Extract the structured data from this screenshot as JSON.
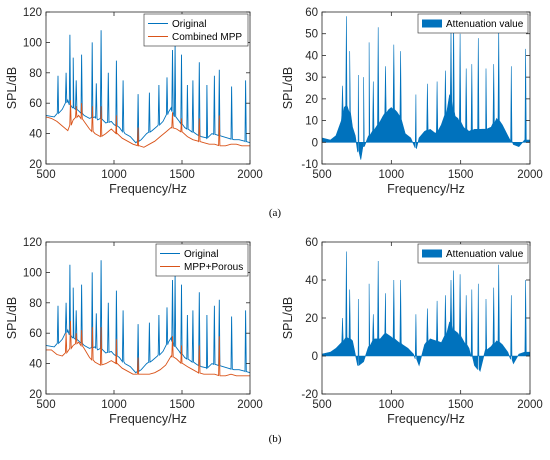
{
  "colors": {
    "original": "#0072BD",
    "treated": "#D95319",
    "attenuation": "#0072BD",
    "axis": "#262626",
    "frame": "#000000"
  },
  "captions": {
    "a": "(a)",
    "b": "(b)"
  },
  "chart_data": [
    {
      "id": "a-spl",
      "type": "line",
      "panel": "(a) left",
      "title": "",
      "xlabel": "Frequency/Hz",
      "ylabel": "SPL/dB",
      "xlim": [
        500,
        2000
      ],
      "ylim": [
        20,
        120
      ],
      "xticks": [
        500,
        1000,
        1500,
        2000
      ],
      "yticks": [
        20,
        40,
        60,
        80,
        100,
        120
      ],
      "legend_position": "top-right",
      "grid": false,
      "series": [
        {
          "name": "Original",
          "color": "#0072BD",
          "x": [
            500,
            560,
            620,
            660,
            680,
            700,
            740,
            780,
            820,
            860,
            880,
            900,
            940,
            980,
            1000,
            1040,
            1080,
            1120,
            1160,
            1200,
            1240,
            1280,
            1320,
            1360,
            1400,
            1420,
            1440,
            1480,
            1520,
            1560,
            1600,
            1640,
            1680,
            1720,
            1760,
            1800,
            1840,
            1880,
            1920,
            1960,
            2000
          ],
          "y": [
            52,
            51,
            56,
            62,
            58,
            57,
            55,
            52,
            50,
            51,
            49,
            50,
            47,
            48,
            46,
            44,
            40,
            38,
            34,
            36,
            40,
            42,
            45,
            48,
            54,
            57,
            52,
            48,
            44,
            42,
            40,
            38,
            37,
            40,
            39,
            38,
            37,
            36,
            36,
            35,
            34
          ],
          "peaks": [
            [
              588,
              78
            ],
            [
              648,
              80
            ],
            [
              676,
              105
            ],
            [
              700,
              90
            ],
            [
              722,
              75
            ],
            [
              762,
              92
            ],
            [
              840,
              100
            ],
            [
              870,
              73
            ],
            [
              905,
              108
            ],
            [
              958,
              80
            ],
            [
              1018,
              88
            ],
            [
              1067,
              75
            ],
            [
              1177,
              66
            ],
            [
              1260,
              67
            ],
            [
              1330,
              72
            ],
            [
              1390,
              77
            ],
            [
              1430,
              95
            ],
            [
              1449,
              98
            ],
            [
              1496,
              92
            ],
            [
              1540,
              72
            ],
            [
              1580,
              75
            ],
            [
              1627,
              87
            ],
            [
              1683,
              72
            ],
            [
              1738,
              78
            ],
            [
              1774,
              82
            ],
            [
              1865,
              71
            ],
            [
              1968,
              75
            ]
          ]
        },
        {
          "name": "Combined MPP",
          "color": "#D95319",
          "x": [
            500,
            540,
            580,
            620,
            660,
            700,
            740,
            780,
            820,
            860,
            900,
            940,
            980,
            1020,
            1060,
            1100,
            1140,
            1180,
            1220,
            1260,
            1300,
            1340,
            1380,
            1420,
            1460,
            1500,
            1540,
            1580,
            1620,
            1660,
            1700,
            1740,
            1780,
            1820,
            1860,
            1900,
            1940,
            1980,
            2000
          ],
          "y": [
            51,
            50,
            48,
            45,
            42,
            49,
            52,
            48,
            43,
            40,
            38,
            40,
            43,
            40,
            37,
            35,
            33,
            32,
            31,
            33,
            35,
            38,
            41,
            44,
            43,
            41,
            38,
            36,
            35,
            34,
            33,
            33,
            32,
            32,
            33,
            33,
            32,
            32,
            32
          ],
          "peaks": [
            [
              680,
              62
            ],
            [
              722,
              58
            ],
            [
              762,
              60
            ],
            [
              841,
              58
            ],
            [
              905,
              58
            ],
            [
              1018,
              52
            ],
            [
              1177,
              44
            ],
            [
              1430,
              54
            ],
            [
              1496,
              50
            ],
            [
              1627,
              50
            ],
            [
              1774,
              52
            ]
          ]
        }
      ]
    },
    {
      "id": "a-att",
      "type": "area",
      "panel": "(a) right",
      "title": "",
      "xlabel": "Frequency/Hz",
      "ylabel": "SPL/dB",
      "xlim": [
        500,
        2000
      ],
      "ylim": [
        -10,
        60
      ],
      "xticks": [
        500,
        1000,
        1500,
        2000
      ],
      "yticks": [
        -10,
        0,
        10,
        20,
        30,
        40,
        50,
        60
      ],
      "legend_position": "top-right",
      "grid": false,
      "series": [
        {
          "name": "Attenuation value",
          "color": "#0072BD",
          "x": [
            500,
            560,
            600,
            640,
            660,
            680,
            700,
            720,
            740,
            760,
            780,
            800,
            840,
            880,
            900,
            940,
            980,
            1000,
            1040,
            1060,
            1100,
            1140,
            1180,
            1200,
            1240,
            1280,
            1320,
            1360,
            1400,
            1420,
            1440,
            1460,
            1480,
            1520,
            1560,
            1600,
            1640,
            1680,
            1720,
            1760,
            1800,
            1840,
            1880,
            1920,
            1960,
            2000
          ],
          "y": [
            2,
            1,
            3,
            10,
            16,
            17,
            14,
            7,
            3,
            -4,
            -8,
            -2,
            3,
            6,
            8,
            12,
            15,
            16,
            14,
            12,
            4,
            2,
            -3,
            2,
            5,
            6,
            4,
            8,
            14,
            22,
            16,
            12,
            11,
            7,
            5,
            6,
            6,
            6,
            7,
            11,
            8,
            3,
            -1,
            -2,
            1,
            1
          ],
          "peaks": [
            [
              648,
              26
            ],
            [
              676,
              58
            ],
            [
              700,
              42
            ],
            [
              762,
              31
            ],
            [
              800,
              30
            ],
            [
              840,
              46
            ],
            [
              870,
              28
            ],
            [
              905,
              53
            ],
            [
              958,
              35
            ],
            [
              1018,
              45
            ],
            [
              1067,
              42
            ],
            [
              1177,
              22
            ],
            [
              1260,
              27
            ],
            [
              1330,
              28
            ],
            [
              1390,
              33
            ],
            [
              1430,
              52
            ],
            [
              1449,
              58
            ],
            [
              1496,
              50
            ],
            [
              1540,
              34
            ],
            [
              1580,
              36
            ],
            [
              1627,
              48
            ],
            [
              1683,
              34
            ],
            [
              1738,
              36
            ],
            [
              1774,
              53
            ],
            [
              1865,
              35
            ],
            [
              1968,
              43
            ]
          ]
        }
      ]
    },
    {
      "id": "b-spl",
      "type": "line",
      "panel": "(b) left",
      "title": "",
      "xlabel": "Frequency/Hz",
      "ylabel": "SPL/dB",
      "xlim": [
        500,
        2000
      ],
      "ylim": [
        20,
        120
      ],
      "xticks": [
        500,
        1000,
        1500,
        2000
      ],
      "yticks": [
        20,
        40,
        60,
        80,
        100,
        120
      ],
      "legend_position": "top-right",
      "grid": false,
      "series": [
        {
          "name": "Original",
          "color": "#0072BD",
          "x": [
            500,
            560,
            620,
            660,
            680,
            700,
            740,
            780,
            820,
            860,
            880,
            900,
            940,
            980,
            1000,
            1040,
            1080,
            1120,
            1160,
            1200,
            1240,
            1280,
            1320,
            1360,
            1400,
            1420,
            1440,
            1480,
            1520,
            1560,
            1600,
            1640,
            1680,
            1720,
            1760,
            1800,
            1840,
            1880,
            1920,
            1960,
            2000
          ],
          "y": [
            52,
            51,
            56,
            62,
            58,
            57,
            55,
            52,
            50,
            51,
            49,
            50,
            47,
            48,
            46,
            44,
            40,
            38,
            34,
            36,
            40,
            42,
            45,
            48,
            54,
            57,
            52,
            48,
            44,
            42,
            40,
            38,
            37,
            40,
            39,
            38,
            37,
            36,
            36,
            35,
            34
          ],
          "peaks": [
            [
              588,
              78
            ],
            [
              648,
              80
            ],
            [
              676,
              105
            ],
            [
              700,
              90
            ],
            [
              722,
              75
            ],
            [
              762,
              92
            ],
            [
              840,
              100
            ],
            [
              870,
              73
            ],
            [
              905,
              108
            ],
            [
              958,
              80
            ],
            [
              1018,
              88
            ],
            [
              1067,
              75
            ],
            [
              1177,
              66
            ],
            [
              1260,
              67
            ],
            [
              1330,
              72
            ],
            [
              1390,
              77
            ],
            [
              1430,
              95
            ],
            [
              1449,
              98
            ],
            [
              1496,
              92
            ],
            [
              1540,
              72
            ],
            [
              1580,
              75
            ],
            [
              1627,
              87
            ],
            [
              1683,
              72
            ],
            [
              1738,
              78
            ],
            [
              1774,
              82
            ],
            [
              1865,
              71
            ],
            [
              1968,
              75
            ]
          ]
        },
        {
          "name": "MPP+Porous",
          "color": "#D95319",
          "x": [
            500,
            540,
            580,
            620,
            660,
            700,
            740,
            780,
            820,
            860,
            900,
            940,
            980,
            1020,
            1060,
            1100,
            1140,
            1180,
            1220,
            1260,
            1300,
            1340,
            1380,
            1420,
            1460,
            1500,
            1540,
            1580,
            1620,
            1660,
            1700,
            1740,
            1780,
            1820,
            1860,
            1900,
            1940,
            1980,
            2000
          ],
          "y": [
            49,
            49,
            46,
            45,
            48,
            52,
            54,
            50,
            44,
            41,
            39,
            40,
            42,
            40,
            37,
            35,
            33,
            33,
            33,
            33,
            34,
            36,
            39,
            45,
            43,
            40,
            38,
            36,
            34,
            33,
            33,
            33,
            32,
            32,
            33,
            32,
            32,
            32,
            32
          ],
          "peaks": [
            [
              648,
              60
            ],
            [
              680,
              68
            ],
            [
              722,
              60
            ],
            [
              762,
              62
            ],
            [
              841,
              64
            ],
            [
              905,
              64
            ],
            [
              1018,
              56
            ],
            [
              1177,
              44
            ],
            [
              1430,
              58
            ],
            [
              1496,
              52
            ],
            [
              1627,
              52
            ],
            [
              1774,
              58
            ]
          ]
        }
      ]
    },
    {
      "id": "b-att",
      "type": "area",
      "panel": "(b) right",
      "title": "",
      "xlabel": "Frequency/Hz",
      "ylabel": "SPL/dB",
      "xlim": [
        500,
        2000
      ],
      "ylim": [
        -20,
        60
      ],
      "xticks": [
        500,
        1000,
        1500,
        2000
      ],
      "yticks": [
        -20,
        0,
        20,
        40,
        60
      ],
      "legend_position": "top-right",
      "grid": false,
      "series": [
        {
          "name": "Attenuation value",
          "color": "#0072BD",
          "x": [
            500,
            560,
            600,
            640,
            680,
            720,
            760,
            800,
            840,
            880,
            920,
            960,
            1000,
            1040,
            1080,
            1120,
            1160,
            1200,
            1240,
            1280,
            1320,
            1360,
            1400,
            1420,
            1440,
            1480,
            1520,
            1560,
            1600,
            1640,
            1680,
            1720,
            1760,
            1800,
            1840,
            1880,
            1920,
            1960,
            2000
          ],
          "y": [
            1,
            2,
            4,
            7,
            10,
            8,
            -5,
            -3,
            5,
            9,
            9,
            12,
            10,
            8,
            6,
            4,
            1,
            -5,
            6,
            9,
            8,
            7,
            12,
            18,
            14,
            12,
            8,
            4,
            -5,
            -8,
            3,
            5,
            8,
            6,
            2,
            -4,
            1,
            2,
            2
          ],
          "peaks": [
            [
              648,
              20
            ],
            [
              676,
              55
            ],
            [
              700,
              35
            ],
            [
              762,
              30
            ],
            [
              840,
              38
            ],
            [
              870,
              22
            ],
            [
              905,
              50
            ],
            [
              958,
              33
            ],
            [
              1018,
              40
            ],
            [
              1067,
              40
            ],
            [
              1177,
              22
            ],
            [
              1260,
              25
            ],
            [
              1330,
              29
            ],
            [
              1390,
              32
            ],
            [
              1430,
              40
            ],
            [
              1449,
              45
            ],
            [
              1496,
              43
            ],
            [
              1540,
              32
            ],
            [
              1580,
              35
            ],
            [
              1627,
              38
            ],
            [
              1683,
              30
            ],
            [
              1738,
              36
            ],
            [
              1774,
              48
            ],
            [
              1865,
              32
            ],
            [
              1968,
              40
            ]
          ]
        }
      ]
    }
  ]
}
